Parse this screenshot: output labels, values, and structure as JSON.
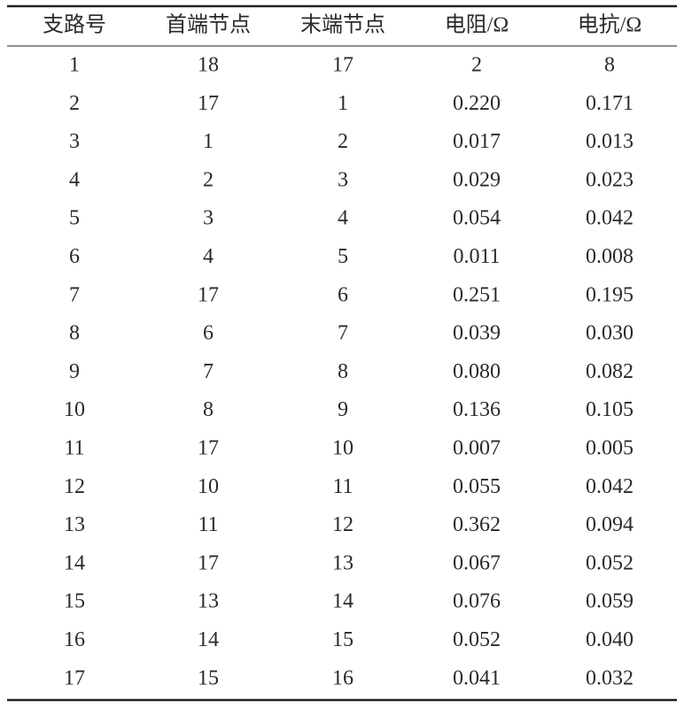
{
  "table": {
    "header": [
      "支路号",
      "首端节点",
      "末端节点",
      "电阻/Ω",
      "电抗/Ω"
    ],
    "rows": [
      [
        "1",
        "18",
        "17",
        "2",
        "8"
      ],
      [
        "2",
        "17",
        "1",
        "0.220",
        "0.171"
      ],
      [
        "3",
        "1",
        "2",
        "0.017",
        "0.013"
      ],
      [
        "4",
        "2",
        "3",
        "0.029",
        "0.023"
      ],
      [
        "5",
        "3",
        "4",
        "0.054",
        "0.042"
      ],
      [
        "6",
        "4",
        "5",
        "0.011",
        "0.008"
      ],
      [
        "7",
        "17",
        "6",
        "0.251",
        "0.195"
      ],
      [
        "8",
        "6",
        "7",
        "0.039",
        "0.030"
      ],
      [
        "9",
        "7",
        "8",
        "0.080",
        "0.082"
      ],
      [
        "10",
        "8",
        "9",
        "0.136",
        "0.105"
      ],
      [
        "11",
        "17",
        "10",
        "0.007",
        "0.005"
      ],
      [
        "12",
        "10",
        "11",
        "0.055",
        "0.042"
      ],
      [
        "13",
        "11",
        "12",
        "0.362",
        "0.094"
      ],
      [
        "14",
        "17",
        "13",
        "0.067",
        "0.052"
      ],
      [
        "15",
        "13",
        "14",
        "0.076",
        "0.059"
      ],
      [
        "16",
        "14",
        "15",
        "0.052",
        "0.040"
      ],
      [
        "17",
        "15",
        "16",
        "0.041",
        "0.032"
      ]
    ]
  }
}
